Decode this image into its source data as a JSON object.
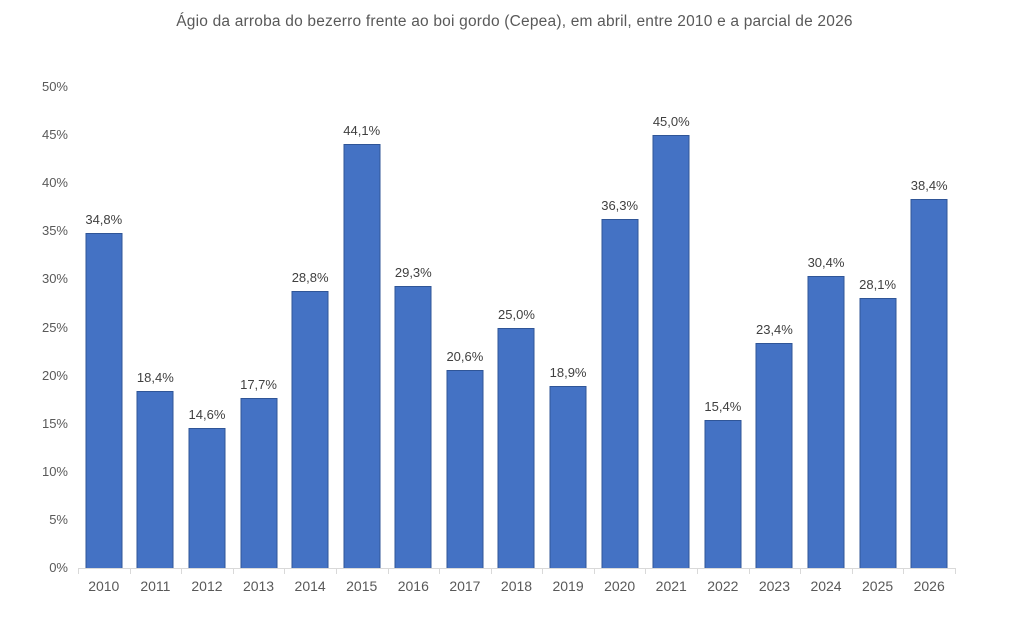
{
  "chart_data": {
    "type": "bar",
    "title": "Ágio da arroba do bezerro frente ao boi gordo (Cepea), em abril, entre 2010 e a parcial de 2026",
    "categories": [
      "2010",
      "2011",
      "2012",
      "2013",
      "2014",
      "2015",
      "2016",
      "2017",
      "2018",
      "2019",
      "2020",
      "2021",
      "2022",
      "2023",
      "2024",
      "2025",
      "2026"
    ],
    "values": [
      34.8,
      18.4,
      14.6,
      17.7,
      28.8,
      44.1,
      29.3,
      20.6,
      25.0,
      18.9,
      36.3,
      45.0,
      15.4,
      23.4,
      30.4,
      28.1,
      38.4
    ],
    "value_labels": [
      "34,8%",
      "18,4%",
      "14,6%",
      "17,7%",
      "28,8%",
      "44,1%",
      "29,3%",
      "20,6%",
      "25,0%",
      "18,9%",
      "36,3%",
      "45,0%",
      "15,4%",
      "23,4%",
      "30,4%",
      "28,1%",
      "38,4%"
    ],
    "y_tick_labels": [
      "0%",
      "5%",
      "10%",
      "15%",
      "20%",
      "25%",
      "30%",
      "35%",
      "40%",
      "45%",
      "50%"
    ],
    "ylim": [
      0,
      50
    ],
    "y_tick_step": 5,
    "xlabel": "",
    "ylabel": "",
    "grid": false,
    "legend": null,
    "colors": {
      "bar_fill": "#4472C4",
      "bar_border": "#2F5597",
      "axis_line": "#D9D9D9",
      "axis_text": "#595959",
      "title_text": "#595959",
      "value_label_text": "#404040",
      "background": "#FFFFFF"
    }
  }
}
